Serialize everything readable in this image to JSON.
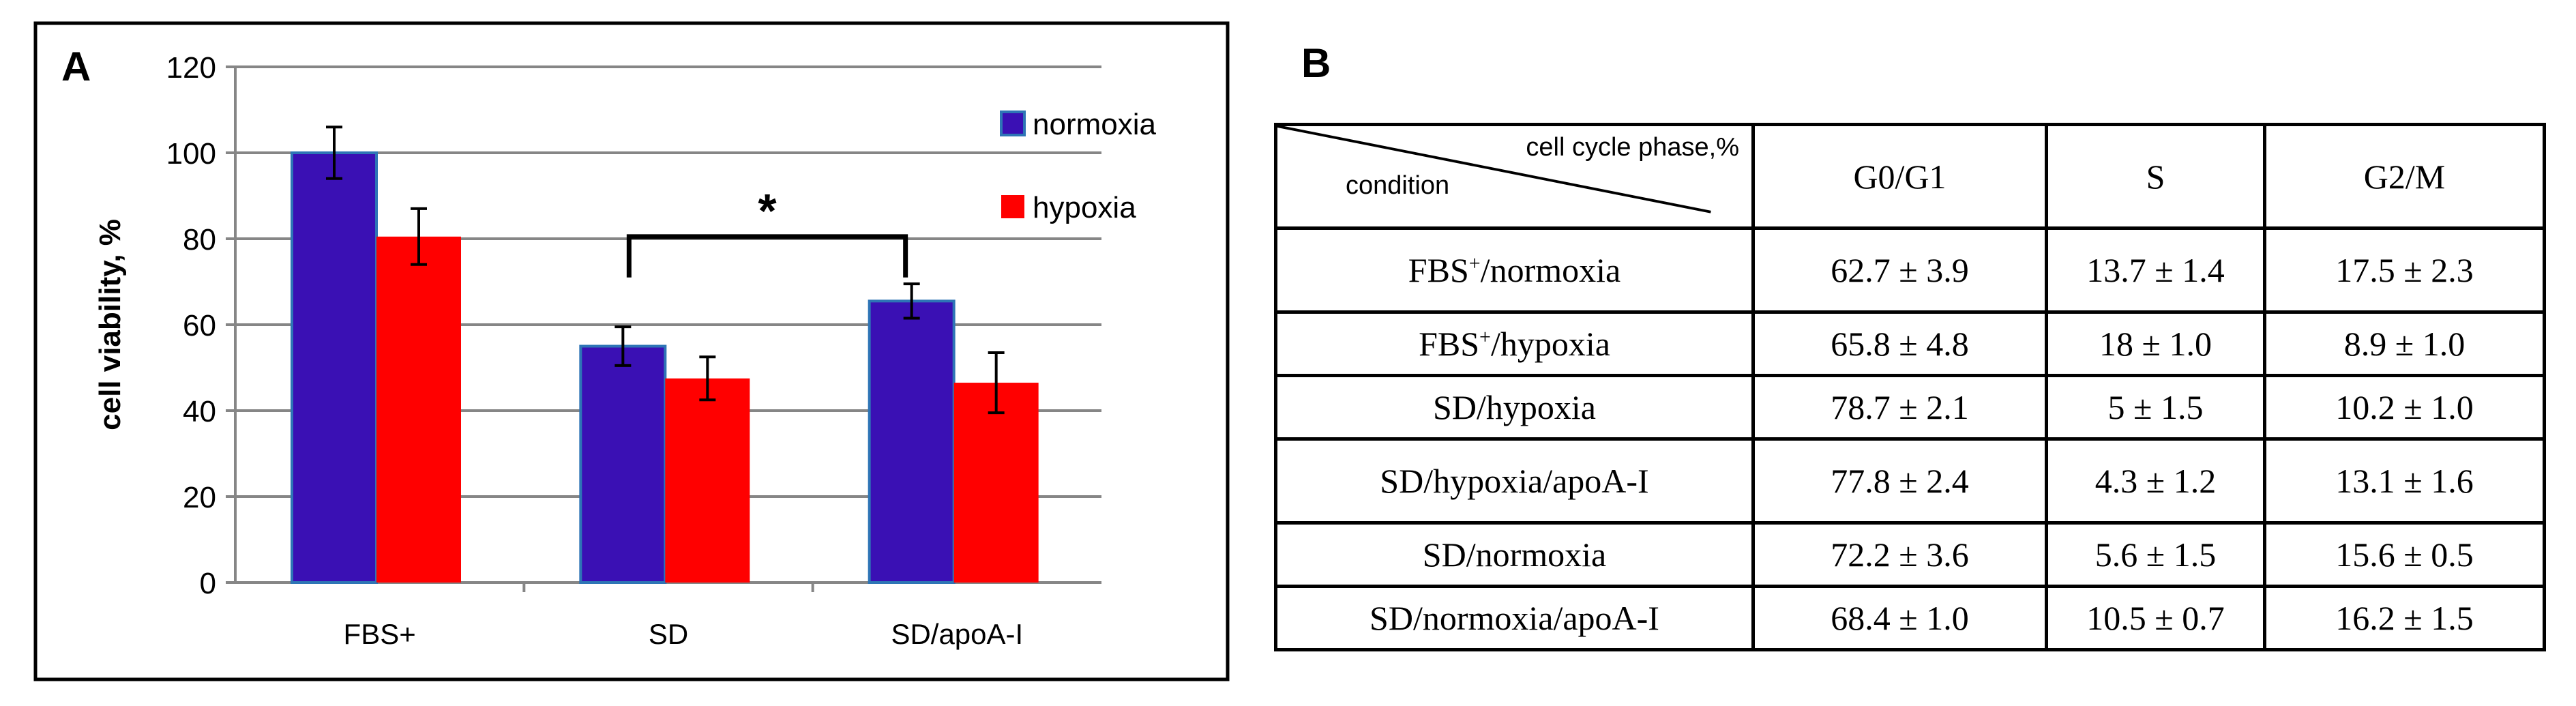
{
  "chart_data": {
    "type": "bar",
    "panel_label": "A",
    "ylabel": "cell viability, %",
    "xlabel": "",
    "ylim": [
      0,
      120
    ],
    "yticks": [
      0,
      20,
      40,
      60,
      80,
      100,
      120
    ],
    "categories": [
      "FBS+",
      "SD",
      "SD/apoA-I"
    ],
    "series": [
      {
        "name": "normoxia",
        "color": "#3a10b4",
        "values": [
          100,
          55,
          65.5
        ],
        "errors": [
          6,
          4.5,
          4
        ]
      },
      {
        "name": "hypoxia",
        "color": "#ff0000",
        "values": [
          80.5,
          47.5,
          46.5
        ],
        "errors": [
          6.5,
          5,
          7
        ]
      }
    ],
    "legend_position": "top-right",
    "grid": true,
    "significance": {
      "label": "*",
      "between": [
        "SD",
        "SD/apoA-I"
      ]
    }
  },
  "table": {
    "panel_label": "B",
    "corner_top": "cell cycle phase,%",
    "corner_bottom": "condition",
    "columns": [
      "G0/G1",
      "S",
      "G2/M"
    ],
    "rows": [
      {
        "condition_main": "FBS",
        "condition_sup": "+",
        "condition_rest": "/normoxia",
        "values": [
          "62.7 ± 3.9",
          "13.7 ± 1.4",
          "17.5 ± 2.3"
        ]
      },
      {
        "condition_main": "FBS",
        "condition_sup": "+",
        "condition_rest": "/hypoxia",
        "values": [
          "65.8 ± 4.8",
          "18 ± 1.0",
          "8.9 ± 1.0"
        ]
      },
      {
        "condition_main": "SD/hypoxia",
        "condition_sup": "",
        "condition_rest": "",
        "values": [
          "78.7 ± 2.1",
          "5 ± 1.5",
          "10.2 ± 1.0"
        ]
      },
      {
        "condition_main": "SD/hypoxia/apoA-I",
        "condition_sup": "",
        "condition_rest": "",
        "values": [
          "77.8 ± 2.4",
          "4.3 ± 1.2",
          "13.1 ± 1.6"
        ]
      },
      {
        "condition_main": "SD/normoxia",
        "condition_sup": "",
        "condition_rest": "",
        "values": [
          "72.2 ± 3.6",
          "5.6 ± 1.5",
          "15.6 ± 0.5"
        ]
      },
      {
        "condition_main": "SD/normoxia/apoA-I",
        "condition_sup": "",
        "condition_rest": "",
        "values": [
          "68.4 ± 1.0",
          "10.5 ± 0.7",
          "16.2 ± 1.5"
        ]
      }
    ]
  }
}
